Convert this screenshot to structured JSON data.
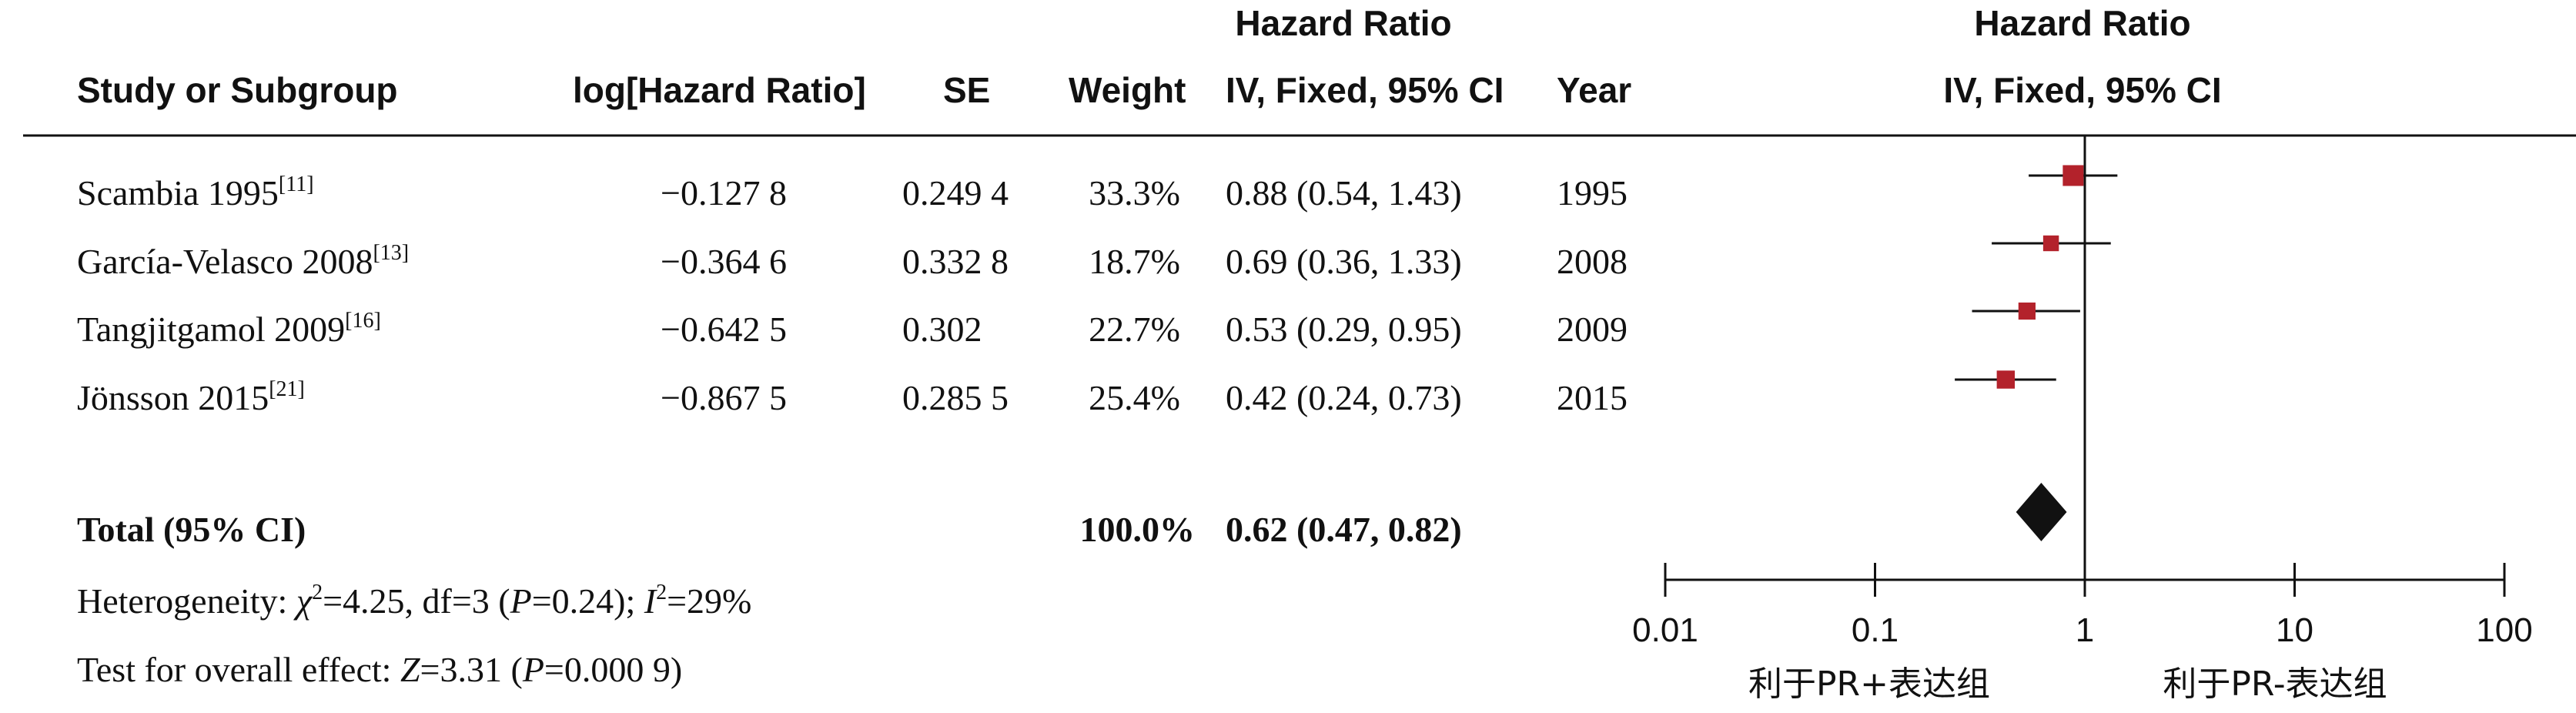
{
  "header": {
    "plot_title_top": "Hazard Ratio",
    "plot_title_bottom": "IV, Fixed, 95% CI",
    "col_study": "Study or Subgroup",
    "col_loghr": "log[Hazard Ratio]",
    "col_se": "SE",
    "col_weight": "Weight",
    "col_hr_top": "Hazard Ratio",
    "col_hr_bottom": "IV, Fixed, 95% CI",
    "col_year": "Year"
  },
  "studies": [
    {
      "name": "Scambia 1995",
      "ref": "[11]",
      "loghr": "−0.127 8",
      "se": "0.249 4",
      "weight": "33.3%",
      "ci": "0.88 (0.54, 1.43)",
      "year": "1995"
    },
    {
      "name": "García-Velasco 2008",
      "ref": "[13]",
      "loghr": "−0.364 6",
      "se": "0.332 8",
      "weight": "18.7%",
      "ci": "0.69 (0.36, 1.33)",
      "year": "2008"
    },
    {
      "name": "Tangjitgamol 2009",
      "ref": "[16]",
      "loghr": "−0.642 5",
      "se": "0.302",
      "weight": "22.7%",
      "ci": "0.53 (0.29, 0.95)",
      "year": "2009"
    },
    {
      "name": "Jönsson 2015",
      "ref": "[21]",
      "loghr": "−0.867 5",
      "se": "0.285 5",
      "weight": "25.4%",
      "ci": "0.42 (0.24, 0.73)",
      "year": "2015"
    }
  ],
  "total": {
    "label": "Total (95% CI)",
    "weight": "100.0%",
    "ci": "0.62 (0.47, 0.82)"
  },
  "heterogeneity": {
    "prefix": "Heterogeneity: ",
    "chi": "χ",
    "chi_sup": "2",
    "chi_val": "=4.25, df=3 (",
    "p": "P",
    "p_val": "=0.24); ",
    "i": "I",
    "i_sup": "2",
    "i_val": "=29%"
  },
  "overall": {
    "prefix": "Test for overall effect: ",
    "z": "Z",
    "z_val": "=3.31 (",
    "p": "P",
    "p_val": "=0.000 9)"
  },
  "favours": {
    "left": "利于PR+表达组",
    "right": "利于PR-表达组"
  },
  "colors": {
    "marker": "#b3222b",
    "diamond": "#111111",
    "line": "#111111"
  },
  "chart_data": {
    "type": "forest",
    "scale": "log",
    "xlim": [
      0.01,
      100
    ],
    "ticks": [
      "0.01",
      "0.1",
      "1",
      "10",
      "100"
    ],
    "tick_values": [
      0.01,
      0.1,
      1,
      10,
      100
    ],
    "reference_line": 1,
    "studies": [
      {
        "hr": 0.88,
        "lo": 0.54,
        "hi": 1.43,
        "weight": 33.3
      },
      {
        "hr": 0.69,
        "lo": 0.36,
        "hi": 1.33,
        "weight": 18.7
      },
      {
        "hr": 0.53,
        "lo": 0.29,
        "hi": 0.95,
        "weight": 22.7
      },
      {
        "hr": 0.42,
        "lo": 0.24,
        "hi": 0.73,
        "weight": 25.4
      }
    ],
    "total": {
      "hr": 0.62,
      "lo": 0.47,
      "hi": 0.82
    }
  }
}
